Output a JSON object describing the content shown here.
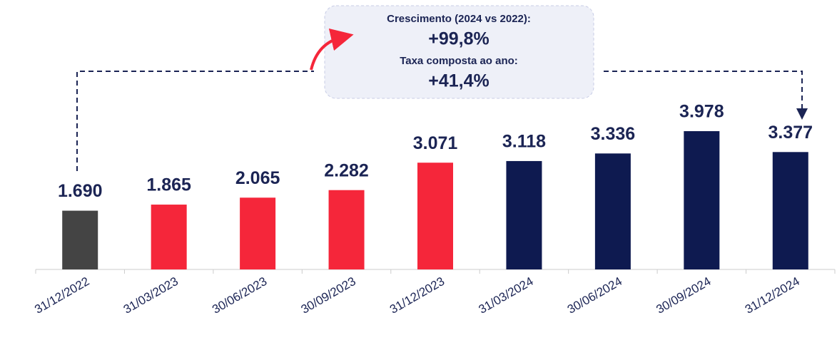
{
  "chart_data": {
    "type": "bar",
    "categories": [
      "31/12/2022",
      "31/03/2023",
      "30/06/2023",
      "30/09/2023",
      "31/12/2023",
      "31/03/2024",
      "30/06/2024",
      "30/09/2024",
      "31/12/2024"
    ],
    "values": [
      1690,
      1865,
      2065,
      2282,
      3071,
      3118,
      3336,
      3978,
      3377
    ],
    "value_labels": [
      "1.690",
      "1.865",
      "2.065",
      "2.282",
      "3.071",
      "3.118",
      "3.336",
      "3.978",
      "3.377"
    ],
    "colors": [
      "#444444",
      "#f5263a",
      "#f5263a",
      "#f5263a",
      "#f5263a",
      "#0e1a50",
      "#0e1a50",
      "#0e1a50",
      "#0e1a50"
    ],
    "annotation": {
      "lines": [
        "Crescimento (2024 vs 2022):",
        "+99,8%",
        "Taxa composta ao ano:",
        "+41,4%"
      ]
    }
  }
}
